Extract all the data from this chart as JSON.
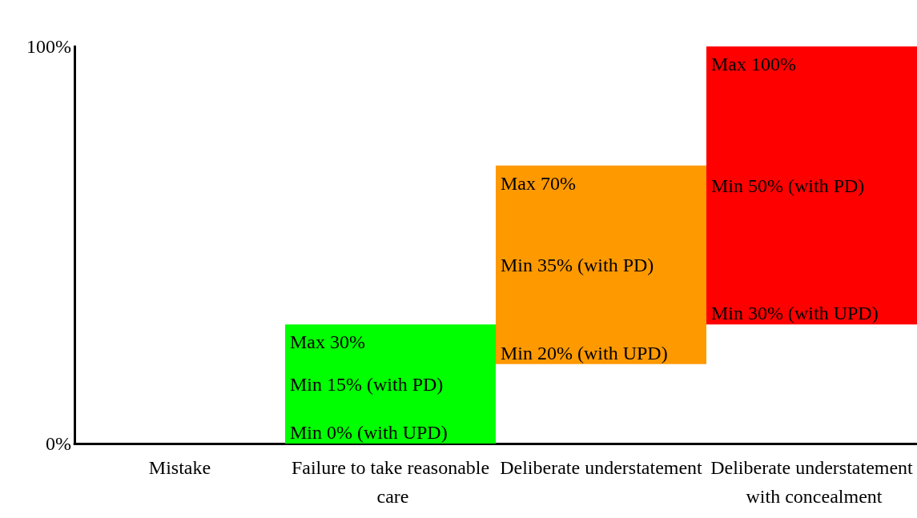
{
  "chart_data": {
    "type": "bar",
    "categories": [
      "Mistake",
      "Failure to take reasonable care",
      "Deliberate understatement",
      "Deliberate understatement with concealment"
    ],
    "values": [
      null,
      30,
      50,
      70
    ],
    "base": [
      null,
      0,
      20,
      30
    ],
    "colors": [
      null,
      "#00ff00",
      "#ff9900",
      "#ff0000"
    ],
    "ylim": [
      0,
      100
    ],
    "yticks": [
      {
        "value": 0,
        "label": "0%"
      },
      {
        "value": 100,
        "label": "100%"
      }
    ],
    "grid": false,
    "annotations": [
      {
        "text": "Max 30%",
        "x": "Failure to take reasonable care",
        "y": 30
      },
      "Min 15% (with PD)",
      {
        "text": "Min 0% (with UPD)",
        "x": "Failure to take reasonable care",
        "y": 0
      },
      {
        "text": "Max 70%",
        "x": "Deliberate understatement",
        "y": 70
      },
      "Min 35% (with PD)",
      {
        "text": "Min 20% (with UPD)",
        "x": "Deliberate understatement",
        "y": 20
      },
      {
        "text": "Max 100%",
        "x": "Deliberate understatement with concealment",
        "y": 100
      },
      "Min 50% (with PD)",
      {
        "text": "Min 30% (with UPD)",
        "x": "Deliberate understatement with concealment",
        "y": 30
      }
    ]
  }
}
